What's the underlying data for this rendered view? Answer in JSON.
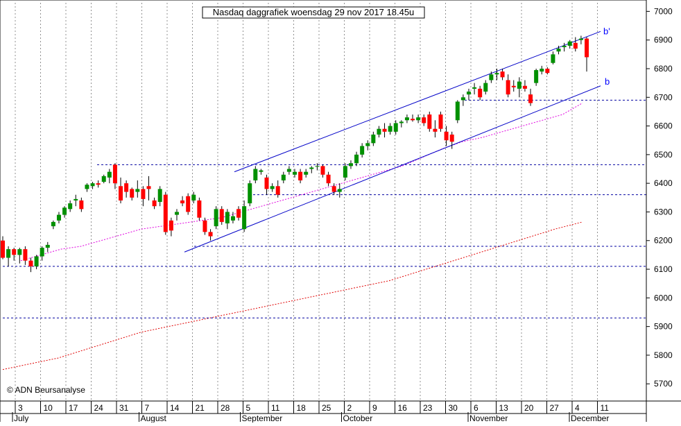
{
  "chart_data": {
    "type": "candlestick",
    "title": "Nasdaq daggrafiek woensdag 29 nov 2017 18.45u",
    "copyright": "© ADN Beursanalyse",
    "y_axis": {
      "ylim": [
        5640,
        7030
      ],
      "ticks": [
        5700,
        5800,
        5900,
        6000,
        6100,
        6200,
        6300,
        6400,
        6500,
        6600,
        6700,
        6800,
        6900,
        7000
      ],
      "position": "right"
    },
    "x_axis": {
      "day_ticks": [
        "3",
        "10",
        "17",
        "24",
        "31",
        "7",
        "14",
        "21",
        "28",
        "5",
        "11",
        "18",
        "25",
        "2",
        "9",
        "16",
        "23",
        "30",
        "6",
        "13",
        "20",
        "27",
        "4",
        "11"
      ],
      "month_labels": [
        "July",
        "August",
        "September",
        "October",
        "November",
        "December"
      ],
      "month_label_positions": [
        0,
        5,
        9,
        13,
        18,
        22
      ]
    },
    "colors": {
      "up": "#009000",
      "down": "#ff0000",
      "wick": "#000000",
      "channel": "#0000c8",
      "horizontal": "#0000a0",
      "ma_short": "#e000e0",
      "ma_long": "#e00000",
      "grid": "#909090",
      "label": "#0000ff"
    },
    "candles": [
      [
        6200,
        6215,
        6135,
        6140
      ],
      [
        6140,
        6180,
        6110,
        6170
      ],
      [
        6170,
        6175,
        6130,
        6150
      ],
      [
        6150,
        6175,
        6120,
        6170
      ],
      [
        6170,
        6180,
        6115,
        6130
      ],
      [
        6130,
        6140,
        6090,
        6110
      ],
      [
        6110,
        6150,
        6100,
        6145
      ],
      [
        6145,
        6180,
        6130,
        6175
      ],
      [
        6175,
        6195,
        6160,
        6185
      ],
      [
        6250,
        6270,
        6240,
        6265
      ],
      [
        6270,
        6300,
        6260,
        6290
      ],
      [
        6290,
        6320,
        6280,
        6315
      ],
      [
        6310,
        6340,
        6300,
        6330
      ],
      [
        6340,
        6360,
        6320,
        6345
      ],
      [
        6340,
        6350,
        6300,
        6310
      ],
      [
        6380,
        6400,
        6370,
        6395
      ],
      [
        6390,
        6405,
        6380,
        6400
      ],
      [
        6400,
        6410,
        6385,
        6395
      ],
      [
        6405,
        6430,
        6400,
        6425
      ],
      [
        6420,
        6450,
        6400,
        6440
      ],
      [
        6465,
        6470,
        6380,
        6400
      ],
      [
        6390,
        6420,
        6330,
        6340
      ],
      [
        6400,
        6410,
        6350,
        6370
      ],
      [
        6380,
        6385,
        6340,
        6350
      ],
      [
        6370,
        6410,
        6350,
        6380
      ],
      [
        6380,
        6390,
        6320,
        6345
      ],
      [
        6390,
        6425,
        6340,
        6380
      ],
      [
        6340,
        6350,
        6310,
        6320
      ],
      [
        6335,
        6390,
        6320,
        6380
      ],
      [
        6360,
        6370,
        6220,
        6230
      ],
      [
        6270,
        6280,
        6215,
        6235
      ],
      [
        6290,
        6310,
        6270,
        6300
      ],
      [
        6340,
        6355,
        6320,
        6330
      ],
      [
        6355,
        6365,
        6290,
        6300
      ],
      [
        6340,
        6370,
        6330,
        6360
      ],
      [
        6340,
        6350,
        6270,
        6280
      ],
      [
        6270,
        6280,
        6220,
        6230
      ],
      [
        6230,
        6240,
        6200,
        6215
      ],
      [
        6250,
        6320,
        6240,
        6310
      ],
      [
        6310,
        6320,
        6255,
        6265
      ],
      [
        6260,
        6310,
        6240,
        6300
      ],
      [
        6270,
        6300,
        6260,
        6285
      ],
      [
        6310,
        6320,
        6270,
        6280
      ],
      [
        6240,
        6340,
        6230,
        6320
      ],
      [
        6330,
        6410,
        6320,
        6400
      ],
      [
        6410,
        6460,
        6400,
        6450
      ],
      [
        6440,
        6450,
        6430,
        6445
      ],
      [
        6420,
        6430,
        6360,
        6380
      ],
      [
        6380,
        6400,
        6370,
        6390
      ],
      [
        6390,
        6410,
        6350,
        6360
      ],
      [
        6410,
        6440,
        6400,
        6430
      ],
      [
        6440,
        6460,
        6430,
        6450
      ],
      [
        6430,
        6450,
        6420,
        6440
      ],
      [
        6440,
        6450,
        6400,
        6410
      ],
      [
        6430,
        6450,
        6420,
        6440
      ],
      [
        6450,
        6460,
        6435,
        6455
      ],
      [
        6460,
        6470,
        6445,
        6460
      ],
      [
        6460,
        6465,
        6420,
        6430
      ],
      [
        6430,
        6440,
        6390,
        6400
      ],
      [
        6390,
        6400,
        6360,
        6370
      ],
      [
        6370,
        6400,
        6350,
        6380
      ],
      [
        6420,
        6470,
        6410,
        6460
      ],
      [
        6460,
        6480,
        6450,
        6470
      ],
      [
        6470,
        6510,
        6460,
        6500
      ],
      [
        6500,
        6540,
        6490,
        6530
      ],
      [
        6530,
        6550,
        6515,
        6540
      ],
      [
        6540,
        6580,
        6530,
        6570
      ],
      [
        6570,
        6600,
        6560,
        6590
      ],
      [
        6590,
        6610,
        6560,
        6580
      ],
      [
        6580,
        6610,
        6570,
        6600
      ],
      [
        6580,
        6620,
        6570,
        6610
      ],
      [
        6610,
        6620,
        6595,
        6615
      ],
      [
        6620,
        6640,
        6610,
        6630
      ],
      [
        6625,
        6640,
        6615,
        6620
      ],
      [
        6620,
        6640,
        6610,
        6630
      ],
      [
        6630,
        6640,
        6600,
        6610
      ],
      [
        6640,
        6650,
        6580,
        6590
      ],
      [
        6590,
        6620,
        6560,
        6580
      ],
      [
        6640,
        6650,
        6580,
        6590
      ],
      [
        6580,
        6600,
        6530,
        6550
      ],
      [
        6570,
        6580,
        6520,
        6545
      ],
      [
        6620,
        6690,
        6610,
        6685
      ],
      [
        6690,
        6710,
        6670,
        6700
      ],
      [
        6710,
        6730,
        6690,
        6720
      ],
      [
        6730,
        6750,
        6710,
        6735
      ],
      [
        6730,
        6740,
        6690,
        6700
      ],
      [
        6720,
        6760,
        6710,
        6750
      ],
      [
        6760,
        6790,
        6750,
        6780
      ],
      [
        6780,
        6800,
        6760,
        6785
      ],
      [
        6790,
        6800,
        6760,
        6770
      ],
      [
        6760,
        6780,
        6700,
        6710
      ],
      [
        6740,
        6760,
        6720,
        6735
      ],
      [
        6730,
        6770,
        6700,
        6755
      ],
      [
        6740,
        6760,
        6720,
        6730
      ],
      [
        6710,
        6730,
        6670,
        6680
      ],
      [
        6750,
        6800,
        6740,
        6795
      ],
      [
        6790,
        6810,
        6780,
        6800
      ],
      [
        6800,
        6805,
        6780,
        6785
      ],
      [
        6820,
        6860,
        6815,
        6850
      ],
      [
        6860,
        6880,
        6850,
        6870
      ],
      [
        6875,
        6890,
        6860,
        6880
      ],
      [
        6880,
        6900,
        6870,
        6895
      ],
      [
        6890,
        6910,
        6860,
        6870
      ],
      [
        6900,
        6915,
        6885,
        6905
      ],
      [
        6905,
        6910,
        6790,
        6840
      ]
    ],
    "channel_upper_label": "b'",
    "channel_lower_label": "b",
    "channel_upper": [
      [
        6440,
        6930
      ]
    ],
    "channel_lower": [
      [
        6160,
        6740
      ]
    ],
    "horizontal_levels": [
      6690,
      6465,
      6360,
      6180,
      6110,
      5930
    ],
    "ma_short": [
      6130,
      6150,
      6170,
      6180,
      6200,
      6220,
      6240,
      6250,
      6260,
      6270,
      6280,
      6300,
      6320,
      6340,
      6360,
      6380,
      6400,
      6420,
      6440,
      6460,
      6490,
      6520,
      6545,
      6560,
      6580,
      6600,
      6620,
      6640,
      6680
    ],
    "ma_long": [
      5750,
      5770,
      5790,
      5820,
      5850,
      5880,
      5900,
      5920,
      5940,
      5960,
      5980,
      6000,
      6020,
      6040,
      6060,
      6090,
      6120,
      6150,
      6180,
      6210,
      6240,
      6265
    ]
  }
}
